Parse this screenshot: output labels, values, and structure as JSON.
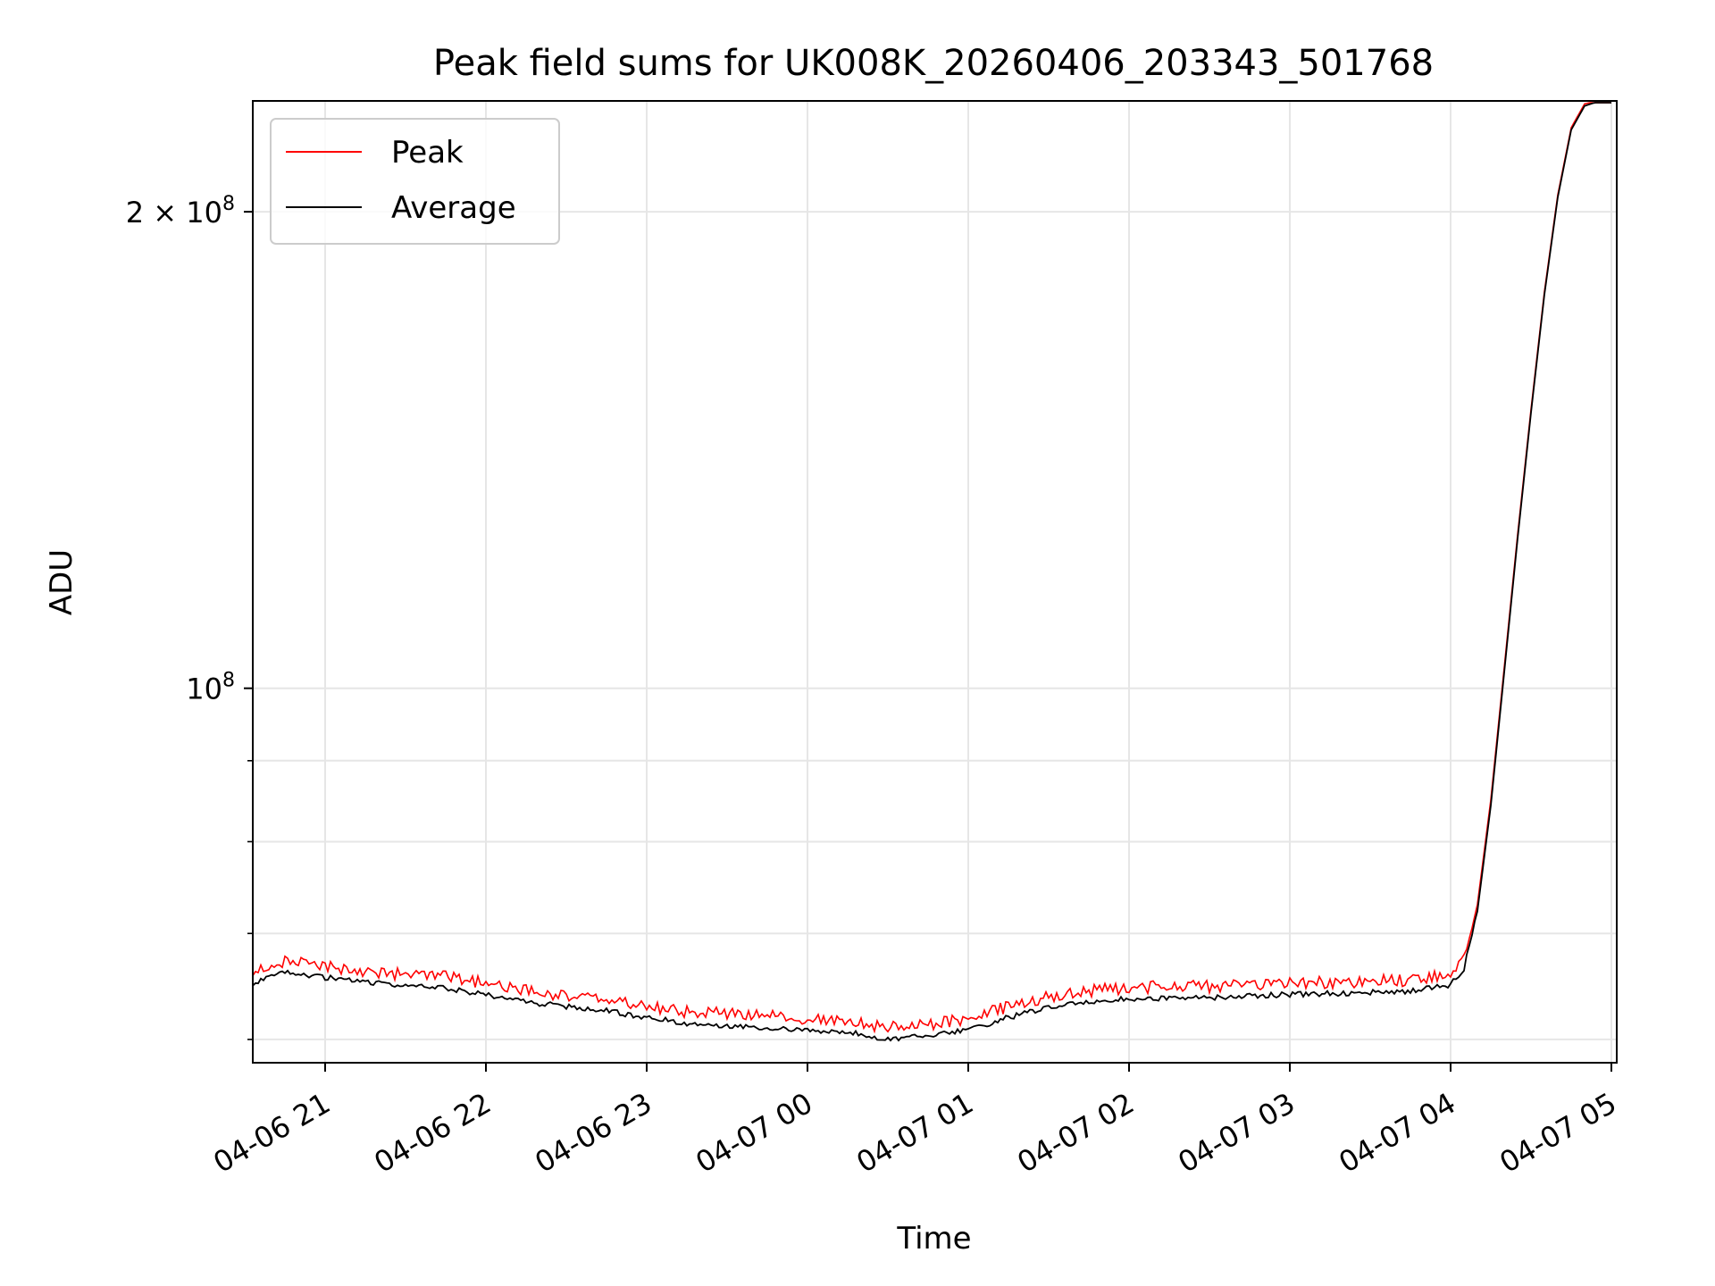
{
  "chart_data": {
    "type": "line",
    "title": "Peak field sums for UK008K_20260406_203343_501768",
    "xlabel": "Time",
    "ylabel": "ADU",
    "yscale": "log",
    "grid": true,
    "legend_position": "top-left",
    "xlim": [
      "2026-04-06 20:33",
      "2026-04-07 05:02"
    ],
    "ylim": [
      58000000,
      235000000
    ],
    "x_ticks": [
      {
        "value": "2026-04-06 21:00",
        "label": "04-06 21"
      },
      {
        "value": "2026-04-06 22:00",
        "label": "04-06 22"
      },
      {
        "value": "2026-04-06 23:00",
        "label": "04-06 23"
      },
      {
        "value": "2026-04-07 00:00",
        "label": "04-07 00"
      },
      {
        "value": "2026-04-07 01:00",
        "label": "04-07 01"
      },
      {
        "value": "2026-04-07 02:00",
        "label": "04-07 02"
      },
      {
        "value": "2026-04-07 03:00",
        "label": "04-07 03"
      },
      {
        "value": "2026-04-07 04:00",
        "label": "04-07 04"
      },
      {
        "value": "2026-04-07 05:00",
        "label": "04-07 05"
      }
    ],
    "y_major_ticks": [
      {
        "value": 100000000,
        "base": "10",
        "exp": "8",
        "mantissa": ""
      },
      {
        "value": 200000000,
        "base": "10",
        "exp": "8",
        "mantissa": "2"
      }
    ],
    "y_minor_ticks": [
      60000000,
      70000000,
      80000000,
      90000000
    ],
    "series": [
      {
        "name": "Peak",
        "color": "#ff0000",
        "x": [
          "2026-04-06 20:33",
          "2026-04-06 20:45",
          "2026-04-06 21:00",
          "2026-04-06 21:15",
          "2026-04-06 21:30",
          "2026-04-06 21:45",
          "2026-04-06 22:00",
          "2026-04-06 22:15",
          "2026-04-06 22:30",
          "2026-04-06 22:45",
          "2026-04-06 23:00",
          "2026-04-06 23:15",
          "2026-04-06 23:30",
          "2026-04-06 23:45",
          "2026-04-07 00:00",
          "2026-04-07 00:15",
          "2026-04-07 00:30",
          "2026-04-07 00:45",
          "2026-04-07 01:00",
          "2026-04-07 01:15",
          "2026-04-07 01:30",
          "2026-04-07 01:45",
          "2026-04-07 02:00",
          "2026-04-07 02:15",
          "2026-04-07 02:30",
          "2026-04-07 02:45",
          "2026-04-07 03:00",
          "2026-04-07 03:15",
          "2026-04-07 03:30",
          "2026-04-07 03:45",
          "2026-04-07 04:00",
          "2026-04-07 04:05",
          "2026-04-07 04:10",
          "2026-04-07 04:15",
          "2026-04-07 04:20",
          "2026-04-07 04:25",
          "2026-04-07 04:30",
          "2026-04-07 04:35",
          "2026-04-07 04:40",
          "2026-04-07 04:45",
          "2026-04-07 04:50",
          "2026-04-07 04:55",
          "2026-04-07 05:00"
        ],
        "y": [
          65500000,
          66600000,
          66100000,
          65700000,
          65300000,
          65100000,
          64500000,
          63800000,
          63400000,
          63000000,
          62400000,
          61900000,
          61700000,
          61500000,
          61200000,
          61100000,
          60500000,
          60800000,
          61300000,
          62400000,
          63300000,
          63800000,
          64100000,
          64200000,
          64200000,
          64400000,
          64500000,
          64600000,
          64700000,
          64800000,
          65400000,
          67000000,
          73000000,
          85000000,
          103000000,
          125000000,
          150000000,
          178000000,
          205000000,
          226000000,
          234000000,
          235000000,
          235000000
        ]
      },
      {
        "name": "Average",
        "color": "#000000",
        "x": [
          "2026-04-06 20:33",
          "2026-04-06 20:45",
          "2026-04-06 21:00",
          "2026-04-06 21:15",
          "2026-04-06 21:30",
          "2026-04-06 21:45",
          "2026-04-06 22:00",
          "2026-04-06 22:15",
          "2026-04-06 22:30",
          "2026-04-06 22:45",
          "2026-04-06 23:00",
          "2026-04-06 23:15",
          "2026-04-06 23:30",
          "2026-04-06 23:45",
          "2026-04-07 00:00",
          "2026-04-07 00:15",
          "2026-04-07 00:30",
          "2026-04-07 00:45",
          "2026-04-07 01:00",
          "2026-04-07 01:15",
          "2026-04-07 01:30",
          "2026-04-07 01:45",
          "2026-04-07 02:00",
          "2026-04-07 02:15",
          "2026-04-07 02:30",
          "2026-04-07 02:45",
          "2026-04-07 03:00",
          "2026-04-07 03:15",
          "2026-04-07 03:30",
          "2026-04-07 03:45",
          "2026-04-07 04:00",
          "2026-04-07 04:05",
          "2026-04-07 04:10",
          "2026-04-07 04:15",
          "2026-04-07 04:20",
          "2026-04-07 04:25",
          "2026-04-07 04:30",
          "2026-04-07 04:35",
          "2026-04-07 04:40",
          "2026-04-07 04:45",
          "2026-04-07 04:50",
          "2026-04-07 04:55",
          "2026-04-07 05:00"
        ],
        "y": [
          64800000,
          65900000,
          65400000,
          65000000,
          64600000,
          64400000,
          63800000,
          63100000,
          62700000,
          62300000,
          61700000,
          61200000,
          61000000,
          60800000,
          60500000,
          60400000,
          59800000,
          60100000,
          60600000,
          61700000,
          62600000,
          63100000,
          63400000,
          63500000,
          63500000,
          63700000,
          63800000,
          63900000,
          64000000,
          64100000,
          64700000,
          66300000,
          72300000,
          84300000,
          102300000,
          124300000,
          149300000,
          177300000,
          204300000,
          225300000,
          233300000,
          234800000,
          235000000
        ]
      }
    ]
  }
}
